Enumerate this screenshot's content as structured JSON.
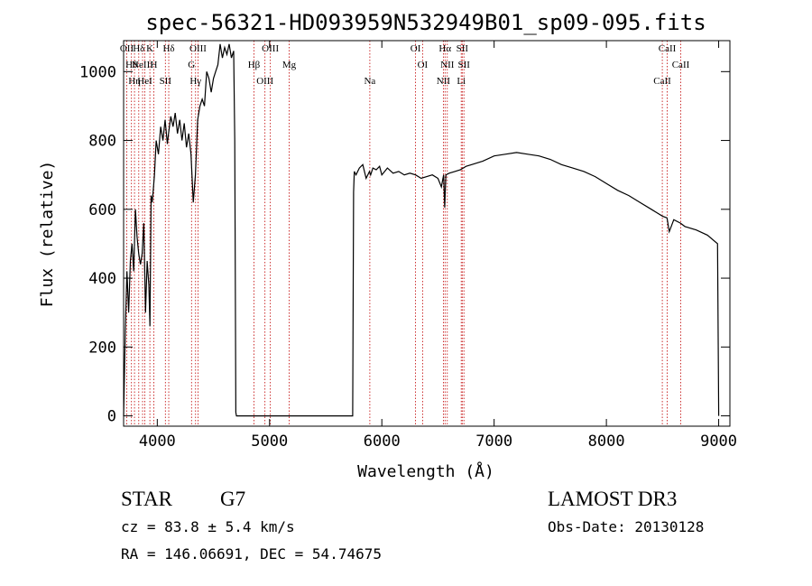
{
  "chart_data": {
    "type": "line",
    "title": "spec-56321-HD093959N532949B01_sp09-095.fits",
    "xlabel": "Wavelength (Å)",
    "ylabel": "Flux (relative)",
    "xlim": [
      3700,
      9100
    ],
    "ylim": [
      -30,
      1090
    ],
    "xticks": [
      4000,
      5000,
      6000,
      7000,
      8000,
      9000
    ],
    "yticks": [
      0,
      200,
      400,
      600,
      800,
      1000
    ],
    "grid": false,
    "series": [
      {
        "x": [
          3700,
          3715,
          3730,
          3745,
          3760,
          3775,
          3790,
          3805,
          3820,
          3835,
          3850,
          3865,
          3880,
          3895,
          3910,
          3925,
          3935,
          3945,
          3955,
          3965,
          3975,
          3990,
          4010,
          4030,
          4050,
          4070,
          4090,
          4100,
          4120,
          4140,
          4160,
          4180,
          4200,
          4220,
          4240,
          4260,
          4280,
          4300,
          4320,
          4340,
          4360,
          4380,
          4400,
          4420,
          4440,
          4460,
          4480,
          4500,
          4520,
          4540,
          4560,
          4580,
          4600,
          4620,
          4640,
          4660,
          4680,
          4690,
          4700,
          4705,
          5740,
          5748,
          5755,
          5770,
          5800,
          5830,
          5860,
          5890,
          5900,
          5920,
          5950,
          5980,
          6000,
          6050,
          6100,
          6150,
          6200,
          6250,
          6300,
          6350,
          6400,
          6450,
          6500,
          6530,
          6550,
          6560,
          6565,
          6570,
          6600,
          6650,
          6700,
          6750,
          6800,
          6900,
          7000,
          7100,
          7200,
          7300,
          7400,
          7500,
          7600,
          7700,
          7800,
          7900,
          8000,
          8100,
          8200,
          8300,
          8400,
          8450,
          8500,
          8540,
          8560,
          8600,
          8660,
          8700,
          8800,
          8900,
          8990,
          9000
        ],
        "y": [
          0,
          250,
          420,
          300,
          450,
          500,
          420,
          600,
          520,
          470,
          440,
          470,
          560,
          300,
          450,
          380,
          260,
          640,
          620,
          660,
          700,
          800,
          760,
          840,
          800,
          860,
          790,
          820,
          870,
          840,
          880,
          820,
          860,
          800,
          850,
          780,
          820,
          760,
          620,
          700,
          860,
          900,
          920,
          900,
          1000,
          980,
          940,
          980,
          1000,
          1020,
          1080,
          1040,
          1070,
          1050,
          1080,
          1040,
          1060,
          800,
          10,
          0,
          0,
          650,
          710,
          700,
          720,
          730,
          690,
          710,
          700,
          720,
          715,
          725,
          700,
          720,
          705,
          710,
          700,
          705,
          700,
          690,
          695,
          700,
          690,
          665,
          700,
          605,
          650,
          700,
          705,
          710,
          715,
          725,
          730,
          740,
          755,
          760,
          765,
          760,
          755,
          745,
          730,
          720,
          710,
          695,
          675,
          655,
          640,
          620,
          600,
          590,
          580,
          575,
          535,
          570,
          560,
          550,
          540,
          525,
          500,
          0
        ]
      }
    ],
    "lines": [
      {
        "x": 3728,
        "labels": [
          "OII"
        ]
      },
      {
        "x": 3770,
        "labels": [
          "Hθ"
        ]
      },
      {
        "x": 3797,
        "labels": [
          "Hη"
        ]
      },
      {
        "x": 3835,
        "labels": [
          "Hδ"
        ]
      },
      {
        "x": 3869,
        "labels": [
          "NeIII"
        ]
      },
      {
        "x": 3889,
        "labels": [
          "HeI"
        ]
      },
      {
        "x": 3934,
        "labels": [
          "K"
        ]
      },
      {
        "x": 3969,
        "labels": [
          "H"
        ]
      },
      {
        "x": 4072,
        "labels": [
          "SII"
        ]
      },
      {
        "x": 4102,
        "labels": [
          "Hδ"
        ]
      },
      {
        "x": 4305,
        "labels": [
          "G"
        ]
      },
      {
        "x": 4341,
        "labels": [
          "Hγ"
        ]
      },
      {
        "x": 4363,
        "labels": [
          "OIII"
        ]
      },
      {
        "x": 4861,
        "labels": [
          "Hβ"
        ]
      },
      {
        "x": 4959,
        "labels": [
          "OIII"
        ]
      },
      {
        "x": 5007,
        "labels": [
          "OIII"
        ]
      },
      {
        "x": 5175,
        "labels": [
          "Mg"
        ]
      },
      {
        "x": 5893,
        "labels": [
          "Na"
        ]
      },
      {
        "x": 6300,
        "labels": [
          "OI"
        ]
      },
      {
        "x": 6363,
        "labels": [
          "OI"
        ]
      },
      {
        "x": 6548,
        "labels": [
          "NII"
        ]
      },
      {
        "x": 6563,
        "labels": [
          "Hα"
        ]
      },
      {
        "x": 6583,
        "labels": [
          "NII"
        ]
      },
      {
        "x": 6707,
        "labels": [
          "Li"
        ]
      },
      {
        "x": 6716,
        "labels": [
          "SII"
        ]
      },
      {
        "x": 6731,
        "labels": [
          "SII"
        ]
      },
      {
        "x": 8498,
        "labels": [
          "CaII"
        ]
      },
      {
        "x": 8542,
        "labels": [
          "CaII"
        ]
      },
      {
        "x": 8662,
        "labels": [
          "CaII"
        ]
      }
    ],
    "line_color": "#c00000"
  },
  "info": {
    "class": "STAR",
    "subclass": "G7",
    "survey": "LAMOST DR3",
    "cz": "cz = 83.8 ± 5.4 km/s",
    "obsdate": "Obs-Date: 20130128",
    "coords": "RA = 146.06691, DEC =  54.74675"
  }
}
